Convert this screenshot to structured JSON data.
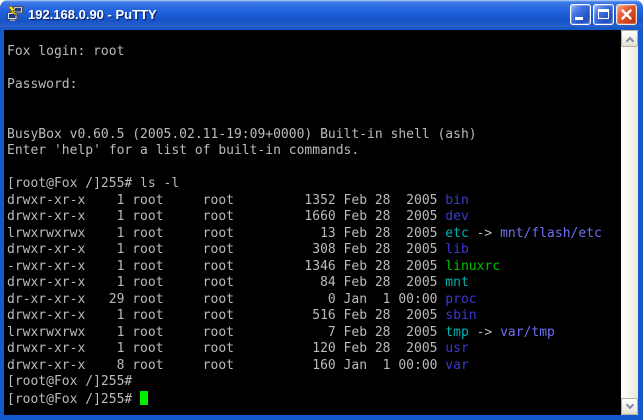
{
  "window": {
    "title": "192.168.0.90 - PuTTY",
    "controls": {
      "minimize": "minimize",
      "maximize": "maximize",
      "close": "close"
    },
    "colors": {
      "titlebar_blue": "#1F62DC",
      "border_blue": "#1459CE",
      "close_red": "#CC3D15"
    }
  },
  "scrollbar": {
    "up_icon": "chevron-up",
    "down_icon": "chevron-down"
  },
  "terminal": {
    "colors": {
      "bg": "#000000",
      "fg": "#BBBBBB",
      "dir": "#3A3AD0",
      "link": "#00B2B2",
      "exec": "#00C000",
      "target": "#6E6EF5",
      "cursor": "#00EE00"
    },
    "lines": [
      {
        "segments": [
          {
            "c": "fg",
            "t": "Fox login: root"
          }
        ]
      },
      {
        "segments": []
      },
      {
        "segments": [
          {
            "c": "fg",
            "t": "Password:"
          }
        ]
      },
      {
        "segments": []
      },
      {
        "segments": []
      },
      {
        "segments": [
          {
            "c": "fg",
            "t": "BusyBox v0.60.5 (2005.02.11-19:09+0000) Built-in shell (ash)"
          }
        ]
      },
      {
        "segments": [
          {
            "c": "fg",
            "t": "Enter 'help' for a list of built-in commands."
          }
        ]
      },
      {
        "segments": []
      },
      {
        "segments": [
          {
            "c": "fg",
            "t": "[root@Fox /]255# ls -l"
          }
        ]
      },
      {
        "segments": [
          {
            "c": "fg",
            "t": "drwxr-xr-x    1 root     root         1352 Feb 28  2005 "
          },
          {
            "c": "dir",
            "t": "bin"
          }
        ]
      },
      {
        "segments": [
          {
            "c": "fg",
            "t": "drwxr-xr-x    1 root     root         1660 Feb 28  2005 "
          },
          {
            "c": "dir",
            "t": "dev"
          }
        ]
      },
      {
        "segments": [
          {
            "c": "fg",
            "t": "lrwxrwxrwx    1 root     root           13 Feb 28  2005 "
          },
          {
            "c": "link",
            "t": "etc"
          },
          {
            "c": "fg",
            "t": " -> "
          },
          {
            "c": "target",
            "t": "mnt/flash/etc"
          }
        ]
      },
      {
        "segments": [
          {
            "c": "fg",
            "t": "drwxr-xr-x    1 root     root          308 Feb 28  2005 "
          },
          {
            "c": "dir",
            "t": "lib"
          }
        ]
      },
      {
        "segments": [
          {
            "c": "fg",
            "t": "-rwxr-xr-x    1 root     root         1346 Feb 28  2005 "
          },
          {
            "c": "exec",
            "t": "linuxrc"
          }
        ]
      },
      {
        "segments": [
          {
            "c": "fg",
            "t": "drwxr-xr-x    1 root     root           84 Feb 28  2005 "
          },
          {
            "c": "link",
            "t": "mnt"
          }
        ]
      },
      {
        "segments": [
          {
            "c": "fg",
            "t": "dr-xr-xr-x   29 root     root            0 Jan  1 00:00 "
          },
          {
            "c": "dir",
            "t": "proc"
          }
        ]
      },
      {
        "segments": [
          {
            "c": "fg",
            "t": "drwxr-xr-x    1 root     root          516 Feb 28  2005 "
          },
          {
            "c": "dir",
            "t": "sbin"
          }
        ]
      },
      {
        "segments": [
          {
            "c": "fg",
            "t": "lrwxrwxrwx    1 root     root            7 Feb 28  2005 "
          },
          {
            "c": "link",
            "t": "tmp"
          },
          {
            "c": "fg",
            "t": " -> "
          },
          {
            "c": "target",
            "t": "var/tmp"
          }
        ]
      },
      {
        "segments": [
          {
            "c": "fg",
            "t": "drwxr-xr-x    1 root     root          120 Feb 28  2005 "
          },
          {
            "c": "dir",
            "t": "usr"
          }
        ]
      },
      {
        "segments": [
          {
            "c": "fg",
            "t": "drwxr-xr-x    8 root     root          160 Jan  1 00:00 "
          },
          {
            "c": "dir",
            "t": "var"
          }
        ]
      },
      {
        "segments": [
          {
            "c": "fg",
            "t": "[root@Fox /]255#"
          }
        ]
      },
      {
        "segments": [
          {
            "c": "fg",
            "t": "[root@Fox /]255# "
          }
        ],
        "cursor": true
      }
    ]
  }
}
